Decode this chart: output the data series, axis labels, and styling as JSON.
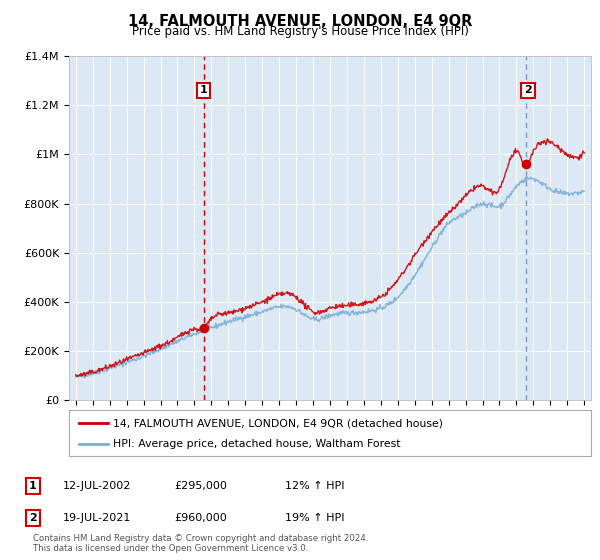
{
  "title": "14, FALMOUTH AVENUE, LONDON, E4 9QR",
  "subtitle": "Price paid vs. HM Land Registry's House Price Index (HPI)",
  "legend_line1": "14, FALMOUTH AVENUE, LONDON, E4 9QR (detached house)",
  "legend_line2": "HPI: Average price, detached house, Waltham Forest",
  "footnote": "Contains HM Land Registry data © Crown copyright and database right 2024.\nThis data is licensed under the Open Government Licence v3.0.",
  "ann1_label": "1",
  "ann1_date": "12-JUL-2002",
  "ann1_price": "£295,000",
  "ann1_hpi": "12% ↑ HPI",
  "ann2_label": "2",
  "ann2_date": "19-JUL-2021",
  "ann2_price": "£960,000",
  "ann2_hpi": "19% ↑ HPI",
  "sale1_x": 2002.54,
  "sale1_y": 295000,
  "sale2_x": 2021.54,
  "sale2_y": 960000,
  "dashed1_x": 2002.54,
  "dashed2_x": 2021.54,
  "ylim": [
    0,
    1400000
  ],
  "xlim": [
    1994.6,
    2025.4
  ],
  "red_color": "#cc0000",
  "blue_color": "#7bafd4",
  "bg_color": "#dde8f5",
  "grid_color": "#ffffff",
  "yticks": [
    0,
    200000,
    400000,
    600000,
    800000,
    1000000,
    1200000,
    1400000
  ],
  "ytick_labels": [
    "£0",
    "£200K",
    "£400K",
    "£600K",
    "£800K",
    "£1M",
    "£1.2M",
    "£1.4M"
  ],
  "xticks": [
    1995,
    1996,
    1997,
    1998,
    1999,
    2000,
    2001,
    2002,
    2003,
    2004,
    2005,
    2006,
    2007,
    2008,
    2009,
    2010,
    2011,
    2012,
    2013,
    2014,
    2015,
    2016,
    2017,
    2018,
    2019,
    2020,
    2021,
    2022,
    2023,
    2024,
    2025
  ],
  "hpi_knots_x": [
    1995,
    1996,
    1997,
    1998,
    1999,
    2000,
    2001,
    2002,
    2003,
    2004,
    2005,
    2006,
    2007,
    2008,
    2009,
    2010,
    2011,
    2012,
    2013,
    2014,
    2015,
    2016,
    2017,
    2018,
    2019,
    2020,
    2021,
    2022,
    2023,
    2024,
    2025
  ],
  "hpi_knots_y": [
    95000,
    110000,
    130000,
    155000,
    180000,
    210000,
    240000,
    270000,
    295000,
    320000,
    340000,
    360000,
    380000,
    370000,
    330000,
    345000,
    355000,
    360000,
    375000,
    420000,
    510000,
    620000,
    720000,
    760000,
    800000,
    790000,
    870000,
    900000,
    860000,
    840000,
    850000
  ],
  "red_knots_x": [
    1995,
    1996,
    1997,
    1998,
    1999,
    2000,
    2001,
    2002,
    2002.54,
    2003,
    2004,
    2005,
    2006,
    2007,
    2008,
    2009,
    2010,
    2011,
    2012,
    2013,
    2014,
    2015,
    2016,
    2017,
    2018,
    2019,
    2020,
    2021,
    2021.54,
    2022,
    2023,
    2024,
    2025
  ],
  "red_knots_y": [
    100000,
    115000,
    138000,
    165000,
    192000,
    222000,
    255000,
    290000,
    295000,
    330000,
    355000,
    375000,
    400000,
    430000,
    420000,
    360000,
    375000,
    385000,
    395000,
    420000,
    490000,
    590000,
    685000,
    760000,
    830000,
    870000,
    860000,
    1010000,
    960000,
    1010000,
    1050000,
    1000000,
    1010000
  ]
}
